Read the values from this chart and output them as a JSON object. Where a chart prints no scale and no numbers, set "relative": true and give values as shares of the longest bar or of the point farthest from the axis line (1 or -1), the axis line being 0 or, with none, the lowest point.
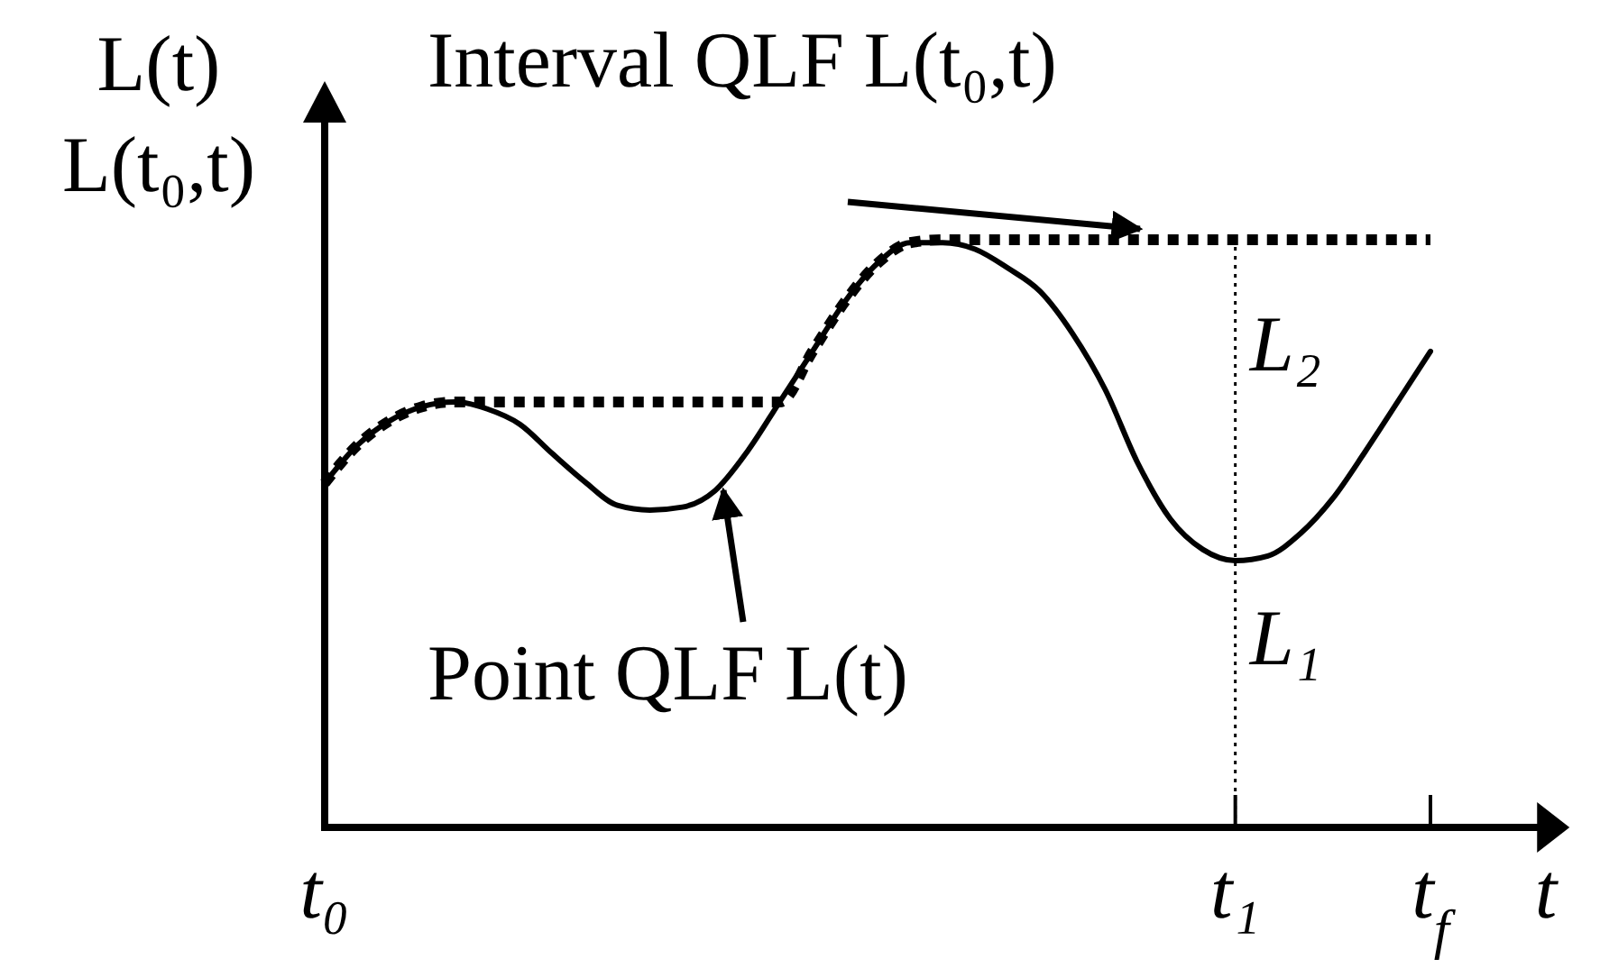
{
  "chart_data": {
    "type": "line",
    "relative": true,
    "xlabel": "t",
    "ylabel": "L(t)\nL(t₀,t)",
    "categories": [
      "t₀",
      null,
      null,
      null,
      null,
      null,
      null,
      null,
      null,
      null,
      null,
      null,
      null,
      null,
      null,
      null,
      null,
      null,
      null,
      null,
      null,
      null,
      null,
      null,
      null,
      null,
      null,
      null,
      "t₁",
      null,
      null,
      null,
      null,
      null,
      "t$_{f}$",
      null,
      null,
      null,
      null
    ],
    "series": [
      {
        "color": "#000000",
        "line_style": "solid",
        "values": [
          0.586,
          0.65,
          0.692,
          0.716,
          0.724,
          0.712,
          0.686,
          0.636,
          0.588,
          0.548,
          0.54,
          0.545,
          0.573,
          0.64,
          0.725,
          0.81,
          0.895,
          0.96,
          0.995,
          0.995,
          0.984,
          0.952,
          0.912,
          0.84,
          0.745,
          0.62,
          0.525,
          0.473,
          0.454,
          0.462,
          0.5,
          0.56,
          0.64,
          0.725,
          0.81,
          null,
          null,
          null,
          null
        ]
      },
      {
        "color": "#000000",
        "line_style": "dotted",
        "values": [
          0.586,
          0.65,
          0.692,
          0.716,
          0.724,
          0.724,
          0.724,
          0.724,
          0.724,
          0.724,
          0.724,
          0.724,
          0.724,
          0.724,
          0.724,
          0.81,
          0.895,
          0.96,
          0.995,
          1,
          1,
          1,
          1,
          1,
          1,
          1,
          1,
          1,
          1,
          1,
          1,
          1,
          1,
          1,
          1,
          null,
          null,
          null,
          null
        ]
      }
    ],
    "ref_lines": [
      {
        "axis": "x",
        "value": "t₁",
        "line_style": "dotted"
      }
    ],
    "annotations": [
      "Interval QLF L(t₀,t)",
      "Point QLF L(t)",
      {
        "text": "L₂",
        "x": "t₁",
        "y": 0.82
      },
      {
        "text": "L₁",
        "x": "t₁",
        "y": 0.32
      }
    ],
    "grid": false,
    "marker": "none"
  }
}
